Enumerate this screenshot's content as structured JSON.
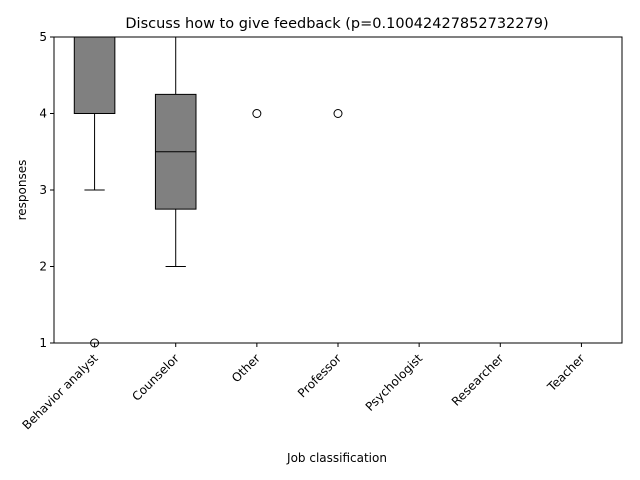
{
  "chart_data": {
    "type": "box",
    "title": "Discuss how to give feedback (p=0.10042427852732279)",
    "xlabel": "Job classification",
    "ylabel": "responses",
    "ylim": [
      1,
      5
    ],
    "yticks": [
      "1",
      "2",
      "3",
      "4",
      "5"
    ],
    "categories": [
      "Behavior analyst",
      "Counselor",
      "Other",
      "Professor",
      "Psychologist",
      "Researcher",
      "Teacher"
    ],
    "boxes": [
      {
        "category": "Behavior analyst",
        "whisker_low": 3,
        "q1": 4,
        "median": 5,
        "q3": 5,
        "whisker_high": 5,
        "outliers": [
          1
        ]
      },
      {
        "category": "Counselor",
        "whisker_low": 2,
        "q1": 2.75,
        "median": 3.5,
        "q3": 4.25,
        "whisker_high": 5,
        "outliers": []
      },
      {
        "category": "Other",
        "whisker_low": 5,
        "q1": 5,
        "median": 5,
        "q3": 5,
        "whisker_high": 5,
        "outliers": [
          4
        ]
      },
      {
        "category": "Professor",
        "whisker_low": 5,
        "q1": 5,
        "median": 5,
        "q3": 5,
        "whisker_high": 5,
        "outliers": [
          4
        ]
      },
      {
        "category": "Psychologist",
        "whisker_low": 5,
        "q1": 5,
        "median": 5,
        "q3": 5,
        "whisker_high": 5,
        "outliers": []
      },
      {
        "category": "Researcher",
        "whisker_low": 5,
        "q1": 5,
        "median": 5,
        "q3": 5,
        "whisker_high": 5,
        "outliers": []
      },
      {
        "category": "Teacher",
        "whisker_low": 5,
        "q1": 5,
        "median": 5,
        "q3": 5,
        "whisker_high": 5,
        "outliers": []
      }
    ],
    "colors": {
      "box_fill": "#808080",
      "line": "#000000",
      "background": "#ffffff"
    }
  }
}
